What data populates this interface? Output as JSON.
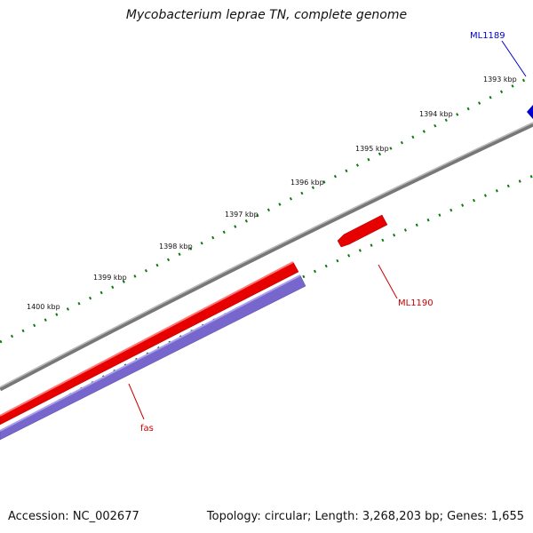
{
  "title": "Mycobacterium leprae TN, complete genome",
  "footer": {
    "accession": "Accession: NC_002677",
    "summary": "Topology: circular; Length: 3,268,203 bp; Genes: 1,655"
  },
  "ticks": [
    {
      "label": "1393 kbp"
    },
    {
      "label": "1394 kbp"
    },
    {
      "label": "1395 kbp"
    },
    {
      "label": "1396 kbp"
    },
    {
      "label": "1397 kbp"
    },
    {
      "label": "1398 kbp"
    },
    {
      "label": "1399 kbp"
    },
    {
      "label": "1400 kbp"
    }
  ],
  "genes": [
    {
      "name": "ML1189",
      "color": "#0000cc"
    },
    {
      "name": "ML1190",
      "color": "#cc0000"
    },
    {
      "name": "fas",
      "color": "#cc0000"
    }
  ],
  "colors": {
    "backbone": "#888888",
    "forward_strand": "#ee1111",
    "reverse_strand": "#7766cc",
    "tick": "#0a7a0a",
    "gene_blue": "#0000cc"
  }
}
